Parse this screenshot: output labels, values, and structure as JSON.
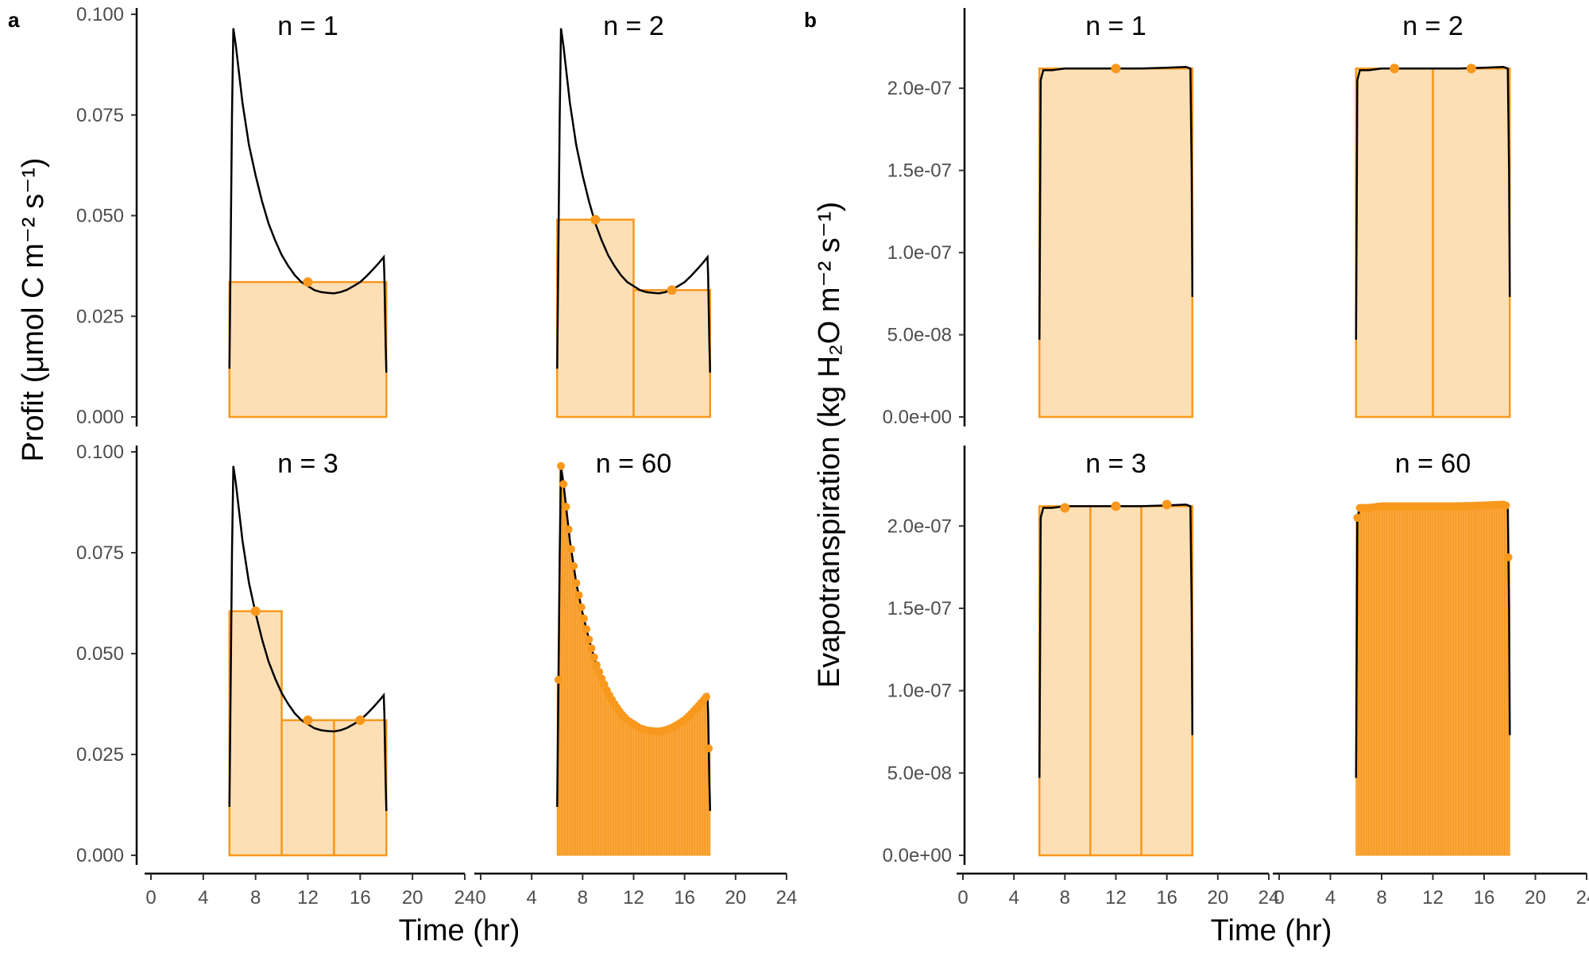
{
  "colors": {
    "curve": "#000000",
    "accent": "#F8981D",
    "fill": "#FDDFB6"
  },
  "chart_data": [
    {
      "panel_label": "a",
      "type": "line",
      "xlabel": "Time (hr)",
      "ylabel": "Profit (μmol C m⁻² s⁻¹)",
      "xlim": [
        0,
        24
      ],
      "xticks": [
        "0",
        "4",
        "8",
        "12",
        "16",
        "20",
        "24"
      ],
      "ylim": [
        0,
        0.1
      ],
      "yticks": [
        "0.000",
        "0.025",
        "0.050",
        "0.075",
        "0.100"
      ],
      "ytick_values": [
        0,
        0.025,
        0.05,
        0.075,
        0.1
      ],
      "facets": [
        {
          "title": "n =  1",
          "n": 1,
          "intervals": [
            [
              6,
              18,
              0.0335
            ]
          ],
          "points": [
            [
              12,
              0.0335
            ]
          ]
        },
        {
          "title": "n =  2",
          "n": 2,
          "intervals": [
            [
              6,
              12,
              0.049
            ],
            [
              12,
              18,
              0.0315
            ]
          ],
          "points": [
            [
              9,
              0.049
            ],
            [
              15,
              0.0315
            ]
          ]
        },
        {
          "title": "n =  3",
          "n": 3,
          "intervals": [
            [
              6,
              10,
              0.0605
            ],
            [
              10,
              14,
              0.0335
            ],
            [
              14,
              18,
              0.0335
            ]
          ],
          "points": [
            [
              8,
              0.0605
            ],
            [
              12,
              0.0335
            ],
            [
              16,
              0.0335
            ]
          ]
        },
        {
          "title": "n =  60",
          "n": 60,
          "intervals": [],
          "points": []
        }
      ],
      "curve": {
        "x": [
          6,
          6.2,
          6.3,
          6.5,
          6.75,
          7,
          7.5,
          8,
          8.5,
          9,
          9.5,
          10,
          10.5,
          11,
          11.5,
          12,
          12.5,
          13,
          13.5,
          14,
          14.5,
          15,
          15.5,
          16,
          16.5,
          17,
          17.5,
          17.8,
          17.85,
          17.95,
          18
        ],
        "y": [
          0.012,
          0.075,
          0.0965,
          0.092,
          0.085,
          0.078,
          0.0675,
          0.06,
          0.0535,
          0.048,
          0.0438,
          0.0402,
          0.0375,
          0.0352,
          0.0335,
          0.0325,
          0.0315,
          0.031,
          0.0308,
          0.0307,
          0.031,
          0.0316,
          0.0325,
          0.0335,
          0.035,
          0.0367,
          0.0385,
          0.0397,
          0.035,
          0.018,
          0.011
        ]
      }
    },
    {
      "panel_label": "b",
      "type": "line",
      "xlabel": "Time (hr)",
      "ylabel": "Evapotranspiration (kg H₂O m⁻² s⁻¹)",
      "xlim": [
        0,
        24
      ],
      "xticks": [
        "0",
        "4",
        "8",
        "12",
        "16",
        "20",
        "24"
      ],
      "ylim": [
        0,
        2.45e-07
      ],
      "yticks": [
        "0.0e+00",
        "5.0e-08",
        "1.0e-07",
        "1.5e-07",
        "2.0e-07"
      ],
      "ytick_values": [
        0,
        5e-08,
        1e-07,
        1.5e-07,
        2e-07
      ],
      "facets": [
        {
          "title": "n =  1",
          "n": 1,
          "intervals": [
            [
              6,
              18,
              2.12e-07
            ]
          ],
          "points": [
            [
              12,
              2.12e-07
            ]
          ]
        },
        {
          "title": "n =  2",
          "n": 2,
          "intervals": [
            [
              6,
              12,
              2.12e-07
            ],
            [
              12,
              18,
              2.12e-07
            ]
          ],
          "points": [
            [
              9,
              2.12e-07
            ],
            [
              15,
              2.12e-07
            ]
          ]
        },
        {
          "title": "n =  3",
          "n": 3,
          "intervals": [
            [
              6,
              10,
              2.12e-07
            ],
            [
              10,
              14,
              2.12e-07
            ],
            [
              14,
              18,
              2.12e-07
            ]
          ],
          "points": [
            [
              8,
              2.11e-07
            ],
            [
              12,
              2.12e-07
            ],
            [
              16,
              2.13e-07
            ]
          ]
        },
        {
          "title": "n =  60",
          "n": 60,
          "intervals": [],
          "points": []
        }
      ],
      "curve": {
        "x": [
          6,
          6.1,
          6.3,
          7,
          8,
          10,
          12,
          14,
          16,
          17.5,
          17.85,
          17.95,
          18
        ],
        "y": [
          4.7e-08,
          2.05e-07,
          2.11e-07,
          2.11e-07,
          2.12e-07,
          2.12e-07,
          2.12e-07,
          2.12e-07,
          2.125e-07,
          2.13e-07,
          2.12e-07,
          1.5e-07,
          7.3e-08
        ]
      }
    }
  ]
}
